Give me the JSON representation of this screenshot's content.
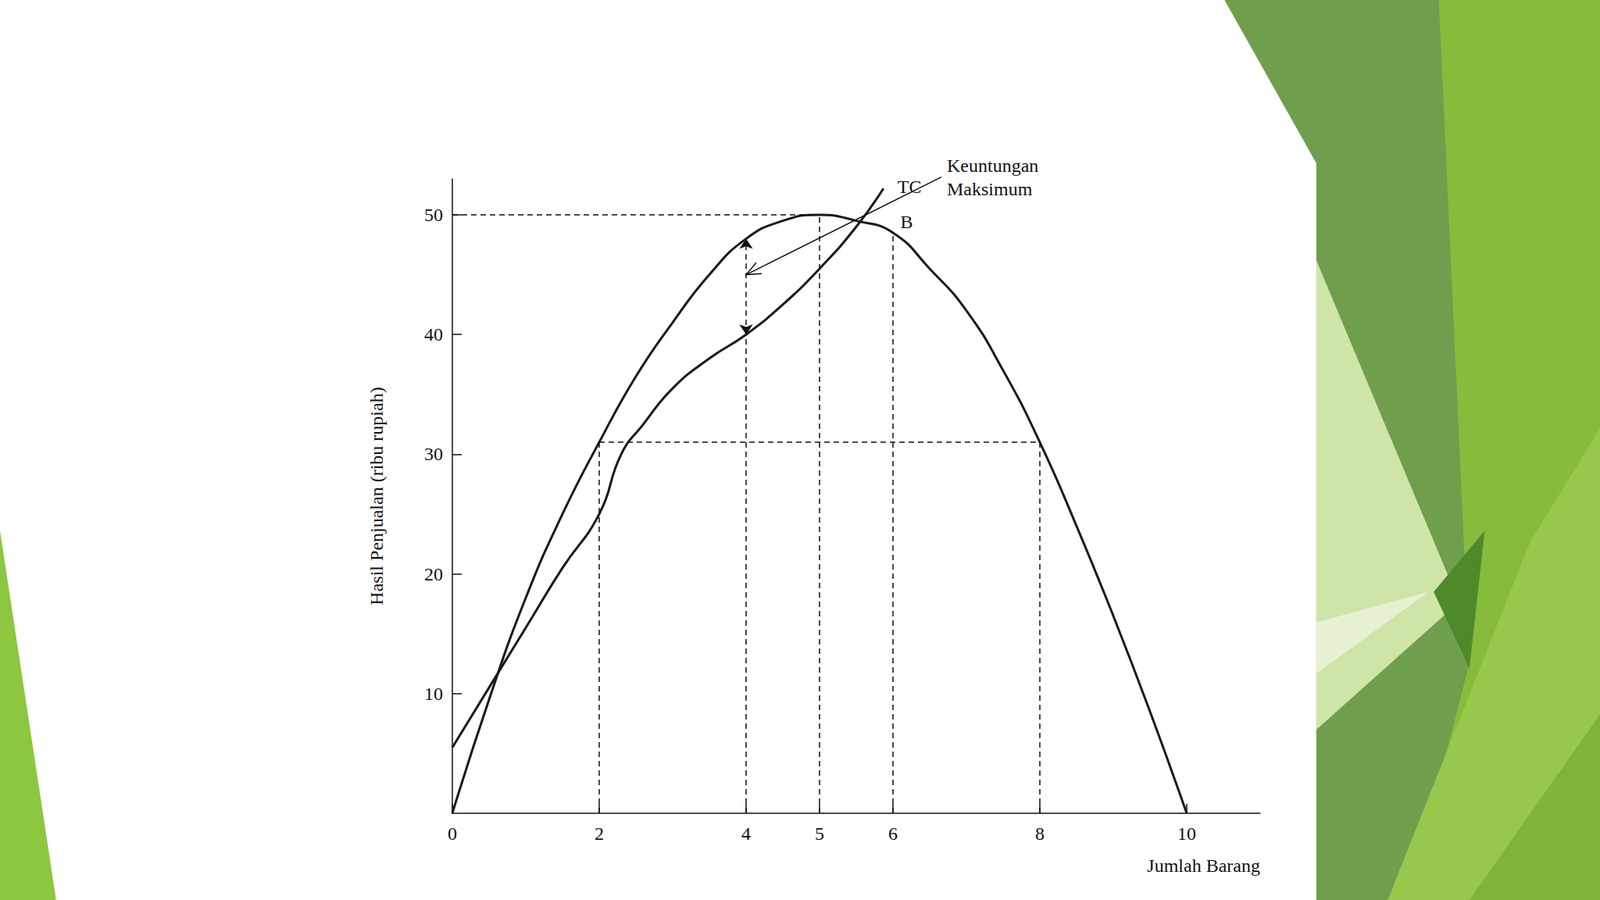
{
  "chart_data": {
    "type": "line",
    "xlabel": "Jumlah Barang",
    "ylabel": "Hasil Penjualan (ribu rupiah)",
    "xlim": [
      0,
      11
    ],
    "xticks": [
      0,
      2,
      4,
      5,
      6,
      8,
      10
    ],
    "ylim": [
      0,
      53
    ],
    "yticks": [
      10,
      20,
      30,
      40,
      50
    ],
    "grid": false,
    "series": [
      {
        "color": "#1a1a1a",
        "x": [
          0,
          0.5,
          1,
          1.5,
          2,
          2.5,
          3,
          3.5,
          4,
          4.5,
          5,
          5.5,
          6,
          6.5,
          7,
          7.5,
          8,
          8.5,
          9,
          9.5,
          10
        ],
        "values": [
          0,
          9.5,
          18,
          25,
          31,
          36.5,
          41,
          45,
          48,
          49.5,
          50,
          49.5,
          48.5,
          45.5,
          42,
          37,
          31,
          24,
          16.5,
          8.5,
          0
        ]
      },
      {
        "name": "TC",
        "color": "#1a1a1a",
        "x": [
          0,
          0.5,
          1,
          1.5,
          2,
          2.3,
          2.6,
          3,
          3.5,
          4,
          4.5,
          5,
          5.5,
          5.87
        ],
        "values": [
          5.5,
          10.5,
          15.5,
          20.5,
          25,
          30,
          32.5,
          35.5,
          38,
          40,
          42.5,
          45.5,
          49,
          52.2
        ]
      }
    ],
    "reference_lines": [
      {
        "from": [
          0,
          50
        ],
        "to": [
          5,
          50
        ]
      },
      {
        "from": [
          2,
          31
        ],
        "to": [
          8,
          31
        ]
      },
      {
        "from": [
          2,
          0
        ],
        "to": [
          2,
          31
        ]
      },
      {
        "from": [
          4,
          0
        ],
        "to": [
          4,
          40
        ]
      },
      {
        "from": [
          5,
          0
        ],
        "to": [
          5,
          50
        ]
      },
      {
        "from": [
          6,
          0
        ],
        "to": [
          6,
          48.5
        ]
      },
      {
        "from": [
          8,
          0
        ],
        "to": [
          8,
          31
        ]
      }
    ],
    "profit_gap": {
      "x": 4,
      "y_from": 40,
      "y_to": 48
    },
    "point_label": {
      "text": "B",
      "x": 6,
      "y": 48.5
    },
    "arrow_label": {
      "text": "Keuntungan Maksimum",
      "x": 4,
      "y": 45
    }
  }
}
